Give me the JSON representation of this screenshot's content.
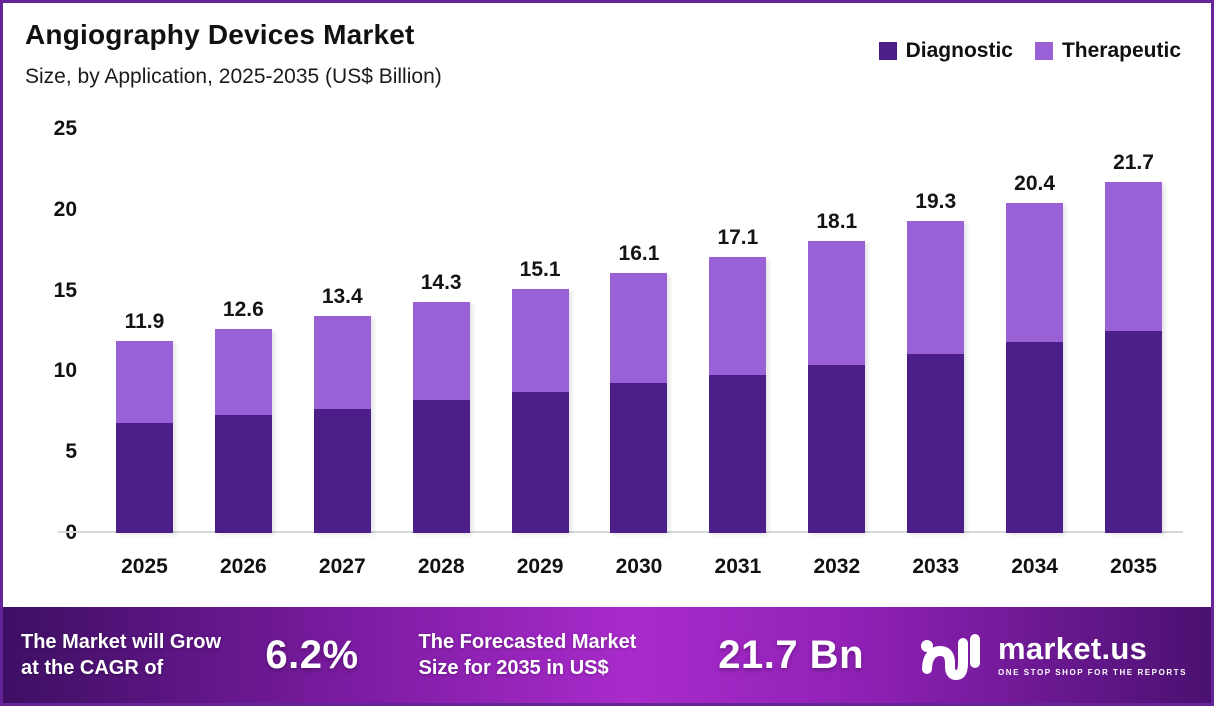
{
  "header": {
    "title": "Angiography  Devices Market",
    "subtitle": "Size, by Application, 2025-2035 (US$ Billion)"
  },
  "colors": {
    "diagnostic": "#4b1e8a",
    "therapeutic": "#9a60d6",
    "axis_line": "#d8d8d8",
    "banner_gradient_mid": "#a92bcb",
    "frame_border": "#66249b"
  },
  "chart_data": {
    "type": "bar",
    "stacked": true,
    "title": "Angiography Devices Market Size, by Application, 2025-2035 (US$ Billion)",
    "xlabel": "",
    "ylabel": "",
    "ylim": [
      0,
      25
    ],
    "yticks": [
      0,
      5,
      10,
      15,
      20,
      25
    ],
    "grid": false,
    "legend_position": "top-right",
    "categories": [
      "2025",
      "2026",
      "2027",
      "2028",
      "2029",
      "2030",
      "2031",
      "2032",
      "2033",
      "2034",
      "2035"
    ],
    "series": [
      {
        "name": "Diagnostic",
        "color": "#4b1e8a",
        "values": [
          6.8,
          7.3,
          7.7,
          8.2,
          8.7,
          9.3,
          9.8,
          10.4,
          11.1,
          11.8,
          12.5
        ]
      },
      {
        "name": "Therapeutic",
        "color": "#9a60d6",
        "values": [
          5.1,
          5.3,
          5.7,
          6.1,
          6.4,
          6.8,
          7.3,
          7.7,
          8.2,
          8.6,
          9.2
        ]
      }
    ],
    "totals": [
      11.9,
      12.6,
      13.4,
      14.3,
      15.1,
      16.1,
      17.1,
      18.1,
      19.3,
      20.4,
      21.7
    ],
    "total_labels": [
      "11.9",
      "12.6",
      "13.4",
      "14.3",
      "15.1",
      "16.1",
      "17.1",
      "18.1",
      "19.3",
      "20.4",
      "21.7"
    ]
  },
  "legend": [
    {
      "label": "Diagnostic",
      "color": "#4b1e8a"
    },
    {
      "label": "Therapeutic",
      "color": "#9a60d6"
    }
  ],
  "banner": {
    "cagr_label": "The Market will Grow at the CAGR of",
    "cagr_value": "6.2%",
    "forecast_label": "The Forecasted Market Size for 2035 in US$",
    "forecast_value": "21.7 Bn",
    "logo_text": "market.us",
    "logo_tagline": "ONE STOP SHOP FOR THE REPORTS"
  }
}
